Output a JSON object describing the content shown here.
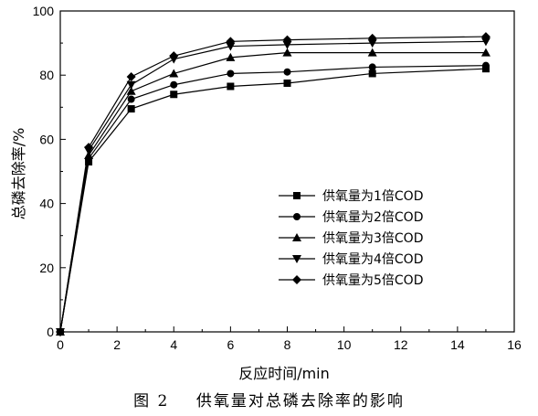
{
  "caption": "图 2    供氧量对总磷去除率的影响",
  "chart_data": {
    "type": "line",
    "xlabel": "反应时间/min",
    "ylabel": "总磷去除率/%",
    "xlim": [
      0,
      16
    ],
    "ylim": [
      0,
      100
    ],
    "xticks": [
      0,
      2,
      4,
      6,
      8,
      10,
      12,
      14,
      16
    ],
    "yticks": [
      0,
      20,
      40,
      60,
      80,
      100
    ],
    "grid": false,
    "legend_position": "center-right",
    "x": [
      0,
      1,
      2.5,
      4,
      6,
      8,
      11,
      15
    ],
    "series": [
      {
        "name": "供氧量为1倍COD",
        "marker": "square",
        "values": [
          0,
          53,
          69.5,
          74,
          76.5,
          77.5,
          80.5,
          82
        ]
      },
      {
        "name": "供氧量为2倍COD",
        "marker": "circle",
        "values": [
          0,
          54,
          72.5,
          77,
          80.5,
          81,
          82.5,
          83
        ]
      },
      {
        "name": "供氧量为3倍COD",
        "marker": "triangle-up",
        "values": [
          0,
          55,
          75,
          80.5,
          85.5,
          87,
          87,
          87
        ]
      },
      {
        "name": "供氧量为4倍COD",
        "marker": "triangle-down",
        "values": [
          0,
          56.5,
          77,
          85,
          89,
          89.5,
          90,
          90.5
        ]
      },
      {
        "name": "供氧量为5倍COD",
        "marker": "diamond",
        "values": [
          0,
          57.5,
          79.5,
          86,
          90.5,
          91,
          91.5,
          92
        ]
      }
    ]
  }
}
